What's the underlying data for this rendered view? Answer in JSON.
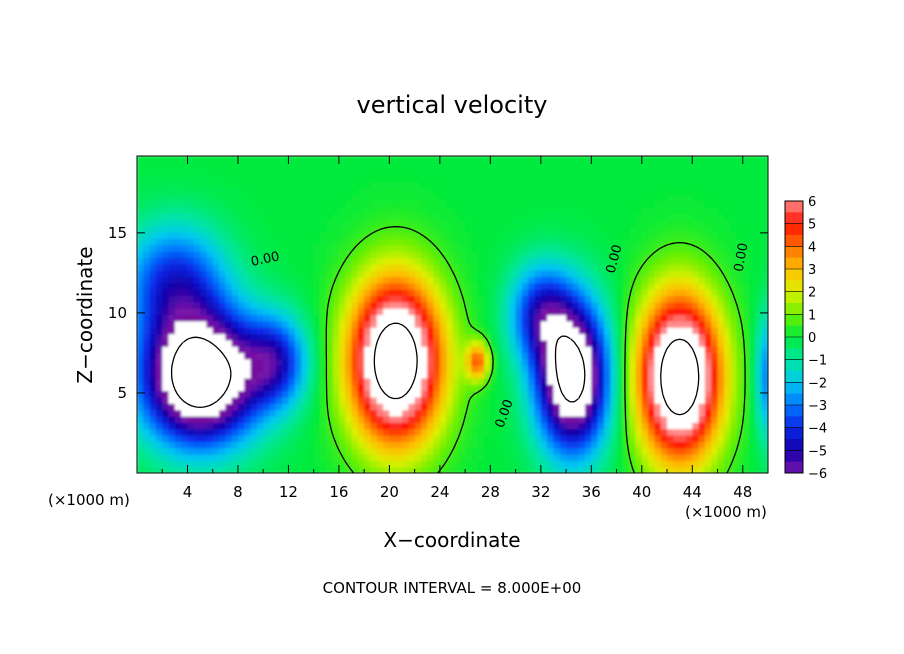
{
  "chart_data": {
    "type": "heatmap",
    "title": "vertical velocity",
    "xlabel": "X−coordinate",
    "ylabel": "Z−coordinate",
    "x_unit_label": "(×1000 m)",
    "y_unit_label": "(×1000 m)",
    "xlim": [
      0,
      50
    ],
    "ylim": [
      0,
      19.8
    ],
    "x_ticks": [
      4,
      8,
      12,
      16,
      20,
      24,
      28,
      32,
      36,
      40,
      44,
      48
    ],
    "y_ticks": [
      5,
      10,
      15
    ],
    "colorbar": {
      "levels": [
        6,
        5,
        4,
        3,
        2,
        1,
        0,
        -1,
        -2,
        -3,
        -4,
        -5,
        -6
      ],
      "labels": [
        "6",
        "5",
        "4",
        "3",
        "2",
        "1",
        "0",
        "−1",
        "−2",
        "−3",
        "−4",
        "−5",
        "−6"
      ]
    },
    "contour_labels": [
      "0.00",
      "0.00",
      "0.00",
      "0.00"
    ],
    "footnote": "CONTOUR INTERVAL = 8.000E+00",
    "features": [
      {
        "kind": "downdraft",
        "x": 5,
        "z": 6,
        "rx": 4.5,
        "rz": 4.0,
        "w": -10
      },
      {
        "kind": "downdraft",
        "x": 11,
        "z": 7,
        "rx": 2.5,
        "rz": 2.8,
        "w": -4
      },
      {
        "kind": "downdraft",
        "x": 3,
        "z": 12,
        "rx": 4.0,
        "rz": 3.5,
        "w": -4
      },
      {
        "kind": "updraft",
        "x": 20.5,
        "z": 7,
        "rx": 3.6,
        "rz": 5.0,
        "w": 10
      },
      {
        "kind": "updraft",
        "x": 27,
        "z": 7,
        "rx": 0.9,
        "rz": 1.2,
        "w": 4
      },
      {
        "kind": "downdraft",
        "x": 34.5,
        "z": 6,
        "rx": 2.8,
        "rz": 4.5,
        "w": -9
      },
      {
        "kind": "downdraft",
        "x": 32,
        "z": 10,
        "rx": 2.5,
        "rz": 3.0,
        "w": -4
      },
      {
        "kind": "updraft",
        "x": 43,
        "z": 6,
        "rx": 3.2,
        "rz": 5.0,
        "w": 10
      },
      {
        "kind": "downdraft",
        "x": 50,
        "z": 6,
        "rx": 1.0,
        "rz": 4.0,
        "w": -3
      }
    ]
  }
}
